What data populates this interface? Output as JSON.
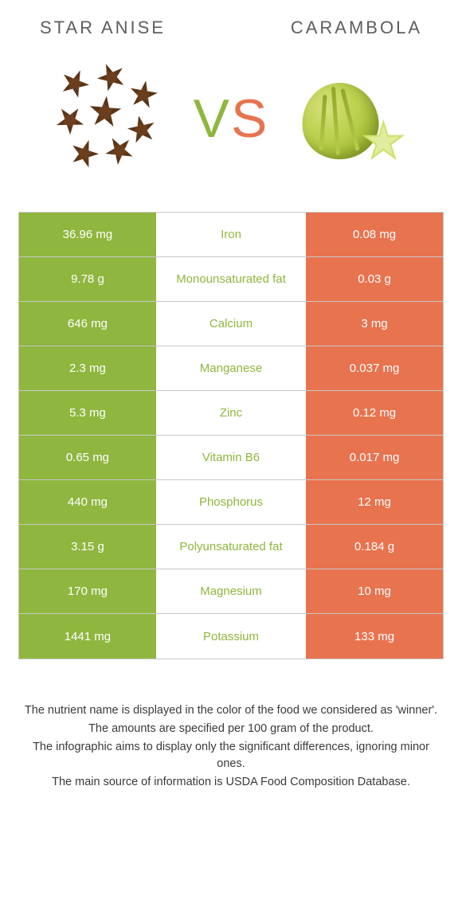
{
  "left_title": "Star anise",
  "right_title": "Carambola",
  "vs": {
    "v": "V",
    "s": "S"
  },
  "colors": {
    "left_bg": "#8fb63f",
    "right_bg": "#e8734f",
    "nutrient_winner_left": "#8fb63f",
    "nutrient_winner_right": "#e8734f",
    "border": "#c7c7c7"
  },
  "rows": [
    {
      "nutrient": "Iron",
      "left": "36.96 mg",
      "right": "0.08 mg",
      "winner": "left"
    },
    {
      "nutrient": "Monounsaturated fat",
      "left": "9.78 g",
      "right": "0.03 g",
      "winner": "left"
    },
    {
      "nutrient": "Calcium",
      "left": "646 mg",
      "right": "3 mg",
      "winner": "left"
    },
    {
      "nutrient": "Manganese",
      "left": "2.3 mg",
      "right": "0.037 mg",
      "winner": "left"
    },
    {
      "nutrient": "Zinc",
      "left": "5.3 mg",
      "right": "0.12 mg",
      "winner": "left"
    },
    {
      "nutrient": "Vitamin B6",
      "left": "0.65 mg",
      "right": "0.017 mg",
      "winner": "left"
    },
    {
      "nutrient": "Phosphorus",
      "left": "440 mg",
      "right": "12 mg",
      "winner": "left"
    },
    {
      "nutrient": "Polyunsaturated fat",
      "left": "3.15 g",
      "right": "0.184 g",
      "winner": "left"
    },
    {
      "nutrient": "Magnesium",
      "left": "170 mg",
      "right": "10 mg",
      "winner": "left"
    },
    {
      "nutrient": "Potassium",
      "left": "1441 mg",
      "right": "133 mg",
      "winner": "left"
    }
  ],
  "notes": [
    "The nutrient name is displayed in the color of the food we considered as 'winner'.",
    "The amounts are specified per 100 gram of the product.",
    "The infographic aims to display only the significant differences, ignoring minor ones.",
    "The main source of information is USDA Food Composition Database."
  ]
}
